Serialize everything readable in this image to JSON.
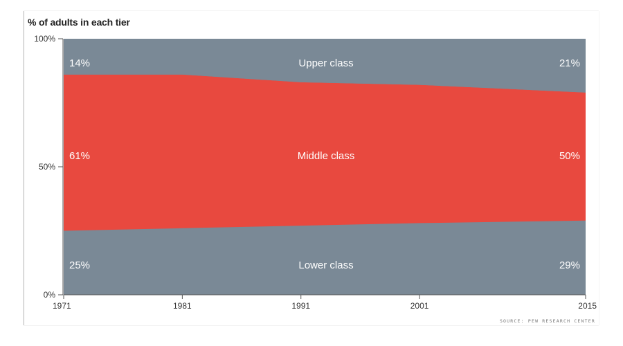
{
  "chart_data": {
    "type": "area",
    "stacked": true,
    "subtitle": "% of adults in each tier",
    "source": "SOURCE: PEW RESEARCH CENTER",
    "ylim": [
      0,
      100
    ],
    "yticks": [
      "0%",
      "50%",
      "100%"
    ],
    "ytick_values": [
      0,
      50,
      100
    ],
    "xticks": [
      "1971",
      "1981",
      "1991",
      "2001",
      "2015"
    ],
    "xtick_values": [
      1971,
      1981,
      1991,
      2001,
      2015
    ],
    "xlim": [
      1971,
      2015
    ],
    "grid": false,
    "x": [
      1971,
      1981,
      1991,
      2001,
      2015
    ],
    "series": [
      {
        "name": "Lower class",
        "color": "#7a8996",
        "values": [
          25,
          26,
          27,
          28,
          29
        ]
      },
      {
        "name": "Middle class",
        "color": "#e8493f",
        "values": [
          61,
          60,
          56,
          54,
          50
        ]
      },
      {
        "name": "Upper class",
        "color": "#7a8996",
        "values": [
          14,
          14,
          17,
          18,
          21
        ]
      }
    ],
    "labels": {
      "upper_start": "14%",
      "upper_end": "21%",
      "middle_start": "61%",
      "middle_end": "50%",
      "lower_start": "25%",
      "lower_end": "29%"
    }
  }
}
